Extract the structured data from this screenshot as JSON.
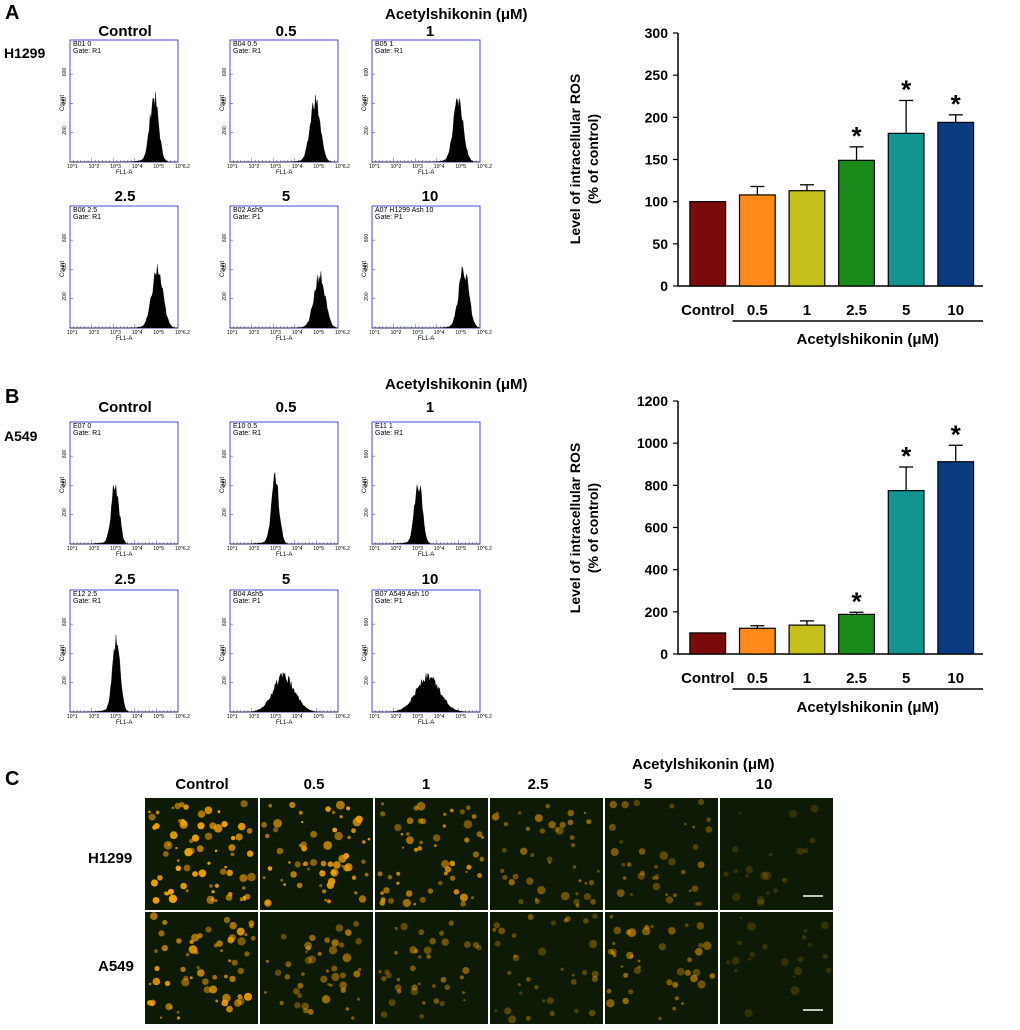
{
  "panels": [
    {
      "letter": "A",
      "cell_line": "H1299",
      "header": "Acetylshikonin (μM)",
      "conditions": [
        "Control",
        "0.5",
        "1",
        "2.5",
        "5",
        "10"
      ],
      "flow_plots": [
        {
          "code": "B01 0",
          "gate": "Gate: R1",
          "ylabel": "Count",
          "xlabel": "FL1-A",
          "peak": 0.78,
          "height": 0.52,
          "spread": 0.04
        },
        {
          "code": "B04 0.5",
          "gate": "Gate: R1",
          "ylabel": "Count",
          "xlabel": "FL1-A",
          "peak": 0.79,
          "height": 0.5,
          "spread": 0.045
        },
        {
          "code": "B05 1",
          "gate": "Gate: R1",
          "ylabel": "Count",
          "xlabel": "FL1-A",
          "peak": 0.8,
          "height": 0.48,
          "spread": 0.045
        },
        {
          "code": "B06 2.5",
          "gate": "Gate: R1",
          "ylabel": "Count",
          "xlabel": "FL1-A",
          "peak": 0.81,
          "height": 0.46,
          "spread": 0.05
        },
        {
          "code": "B02 Ash5",
          "gate": "Gate: P1",
          "ylabel": "Count",
          "xlabel": "FL1-A",
          "peak": 0.83,
          "height": 0.42,
          "spread": 0.05
        },
        {
          "code": "A07 H1299 Ash 10",
          "gate": "Gate: P1",
          "ylabel": "Count",
          "xlabel": "FL1-A",
          "peak": 0.85,
          "height": 0.48,
          "spread": 0.045
        }
      ]
    },
    {
      "letter": "B",
      "cell_line": "A549",
      "header": "Acetylshikonin (μM)",
      "conditions": [
        "Control",
        "0.5",
        "1",
        "2.5",
        "5",
        "10"
      ],
      "flow_plots": [
        {
          "code": "E07 0",
          "gate": "Gate: R1",
          "ylabel": "Count",
          "xlabel": "FL1-A",
          "peak": 0.42,
          "height": 0.48,
          "spread": 0.035
        },
        {
          "code": "E10 0.5",
          "gate": "Gate: R1",
          "ylabel": "Count",
          "xlabel": "FL1-A",
          "peak": 0.42,
          "height": 0.52,
          "spread": 0.035
        },
        {
          "code": "E11 1",
          "gate": "Gate: R1",
          "ylabel": "Count",
          "xlabel": "FL1-A",
          "peak": 0.43,
          "height": 0.5,
          "spread": 0.035
        },
        {
          "code": "E12 2.5",
          "gate": "Gate: R1",
          "ylabel": "Count",
          "xlabel": "FL1-A",
          "peak": 0.43,
          "height": 0.55,
          "spread": 0.035
        },
        {
          "code": "B04 Ash5",
          "gate": "Gate: P1",
          "ylabel": "Count",
          "xlabel": "FL1-A",
          "peak": 0.5,
          "height": 0.28,
          "spread": 0.1
        },
        {
          "code": "B07 A549 Ash 10",
          "gate": "Gate: P1",
          "ylabel": "Count",
          "xlabel": "FL1-A",
          "peak": 0.52,
          "height": 0.28,
          "spread": 0.11
        }
      ]
    }
  ],
  "flow_axis": {
    "yticks": [
      "200",
      "400",
      "600"
    ],
    "xticks": [
      "10^1",
      "10^2",
      "10^3",
      "10^4",
      "10^5",
      "10^6.2"
    ]
  },
  "chart_data": [
    {
      "type": "bar",
      "panel": "A",
      "categories": [
        "Control",
        "0.5",
        "1",
        "2.5",
        "5",
        "10"
      ],
      "values": [
        100,
        108,
        113,
        149,
        181,
        194
      ],
      "errors": [
        0,
        10,
        7,
        16,
        39,
        9
      ],
      "significant": [
        false,
        false,
        false,
        true,
        true,
        true
      ],
      "colors": [
        "#7b0a0a",
        "#ff8a1a",
        "#c4c21a",
        "#1a8a1a",
        "#129490",
        "#0a3a80"
      ],
      "ylabel": "Level of intracellular ROS (% of control)",
      "ylabel_line1": "Level of intracellular ROS",
      "ylabel_line2": "(% of control)",
      "xlabel": "Acetylshikonin (μM)",
      "ylim": [
        0,
        300
      ],
      "yticks": [
        0,
        50,
        100,
        150,
        200,
        250,
        300
      ],
      "marker": "*"
    },
    {
      "type": "bar",
      "panel": "B",
      "categories": [
        "Control",
        "0.5",
        "1",
        "2.5",
        "5",
        "10"
      ],
      "values": [
        100,
        122,
        137,
        188,
        775,
        912
      ],
      "errors": [
        0,
        12,
        20,
        10,
        112,
        78
      ],
      "significant": [
        false,
        false,
        false,
        true,
        true,
        true
      ],
      "colors": [
        "#7b0a0a",
        "#ff8a1a",
        "#c4c21a",
        "#1a8a1a",
        "#129490",
        "#0a3a80"
      ],
      "ylabel": "Level of intracellular ROS (% of control)",
      "ylabel_line1": "Level of intracellular ROS",
      "ylabel_line2": "(% of control)",
      "xlabel": "Acetylshikonin (μM)",
      "ylim": [
        0,
        1200
      ],
      "yticks": [
        0,
        200,
        400,
        600,
        800,
        1000,
        1200
      ],
      "marker": "*"
    }
  ],
  "panel_c": {
    "letter": "C",
    "header": "Acetylshikonin (μM)",
    "conditions": [
      "Control",
      "0.5",
      "1",
      "2.5",
      "5",
      "10"
    ],
    "rows": [
      {
        "label": "H1299",
        "intensity": [
          1.0,
          0.85,
          0.7,
          0.45,
          0.35,
          0.05
        ]
      },
      {
        "label": "A549",
        "intensity": [
          0.8,
          0.5,
          0.4,
          0.3,
          0.45,
          0.05
        ]
      }
    ],
    "cell_color": "#f2a000",
    "scale_bar": true
  }
}
